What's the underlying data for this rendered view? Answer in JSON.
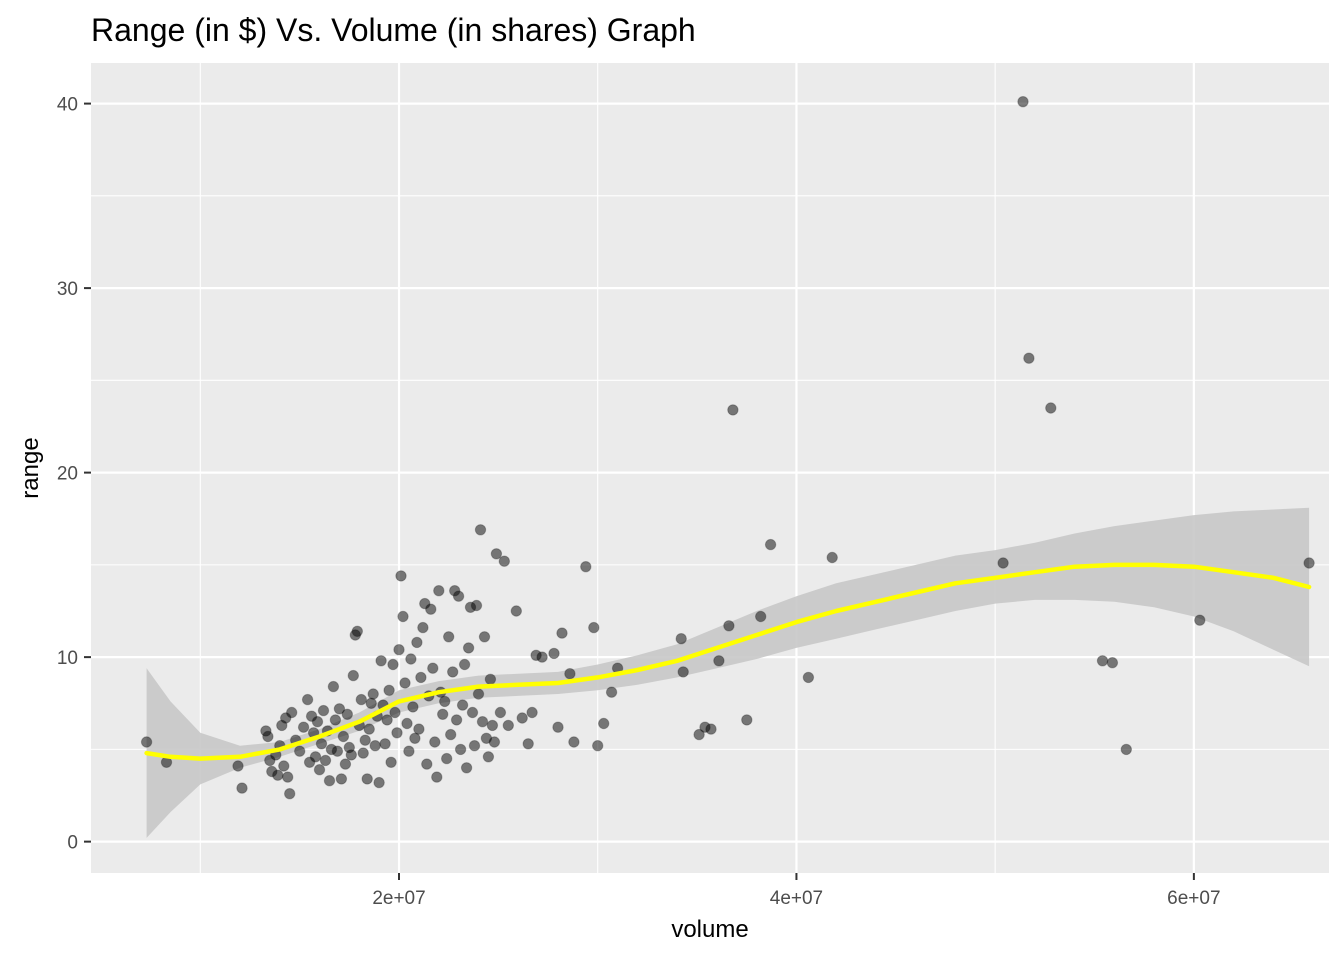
{
  "chart_data": {
    "type": "scatter",
    "title": "Range (in $) Vs. Volume (in shares) Graph",
    "xlabel": "volume",
    "ylabel": "range",
    "xlim": [
      4500000,
      66800000
    ],
    "ylim": [
      -1.7,
      42.2
    ],
    "x_ticks": [
      20000000,
      40000000,
      60000000
    ],
    "x_tick_labels": [
      "2e+07",
      "4e+07",
      "6e+07"
    ],
    "y_ticks": [
      0,
      10,
      20,
      30,
      40
    ],
    "y_tick_labels": [
      "0",
      "10",
      "20",
      "30",
      "40"
    ],
    "grid": true,
    "panel_background": "#ebebeb",
    "point_color": "#000000",
    "point_opacity": 0.5,
    "smooth_color": "#ffff00",
    "ribbon_color": "#c8c8c8",
    "points": [
      [
        7300000,
        5.4
      ],
      [
        8300000,
        4.3
      ],
      [
        11900000,
        4.1
      ],
      [
        12100000,
        2.9
      ],
      [
        13300000,
        6.0
      ],
      [
        13400000,
        5.7
      ],
      [
        13500000,
        4.4
      ],
      [
        13600000,
        3.8
      ],
      [
        13800000,
        4.7
      ],
      [
        13900000,
        3.6
      ],
      [
        14000000,
        5.2
      ],
      [
        14100000,
        6.3
      ],
      [
        14200000,
        4.1
      ],
      [
        14300000,
        6.7
      ],
      [
        14400000,
        3.5
      ],
      [
        14500000,
        2.6
      ],
      [
        14600000,
        7.0
      ],
      [
        14800000,
        5.5
      ],
      [
        15000000,
        4.9
      ],
      [
        15200000,
        6.2
      ],
      [
        15400000,
        7.7
      ],
      [
        15500000,
        4.3
      ],
      [
        15600000,
        6.8
      ],
      [
        15700000,
        5.9
      ],
      [
        15800000,
        4.6
      ],
      [
        15900000,
        6.5
      ],
      [
        16000000,
        3.9
      ],
      [
        16100000,
        5.3
      ],
      [
        16200000,
        7.1
      ],
      [
        16300000,
        4.4
      ],
      [
        16400000,
        6.0
      ],
      [
        16500000,
        3.3
      ],
      [
        16600000,
        5.0
      ],
      [
        16700000,
        8.4
      ],
      [
        16800000,
        6.6
      ],
      [
        16900000,
        4.9
      ],
      [
        17000000,
        7.2
      ],
      [
        17100000,
        3.4
      ],
      [
        17200000,
        5.7
      ],
      [
        17300000,
        4.2
      ],
      [
        17400000,
        6.9
      ],
      [
        17500000,
        5.1
      ],
      [
        17600000,
        4.7
      ],
      [
        17700000,
        9.0
      ],
      [
        17800000,
        11.2
      ],
      [
        17900000,
        11.4
      ],
      [
        18000000,
        6.3
      ],
      [
        18100000,
        7.7
      ],
      [
        18200000,
        4.8
      ],
      [
        18300000,
        5.5
      ],
      [
        18400000,
        3.4
      ],
      [
        18500000,
        6.1
      ],
      [
        18600000,
        7.5
      ],
      [
        18700000,
        8.0
      ],
      [
        18800000,
        5.2
      ],
      [
        18900000,
        6.8
      ],
      [
        19000000,
        3.2
      ],
      [
        19100000,
        9.8
      ],
      [
        19200000,
        7.4
      ],
      [
        19300000,
        5.3
      ],
      [
        19400000,
        6.6
      ],
      [
        19500000,
        8.2
      ],
      [
        19600000,
        4.3
      ],
      [
        19700000,
        9.6
      ],
      [
        19800000,
        7.0
      ],
      [
        19900000,
        5.9
      ],
      [
        20000000,
        10.4
      ],
      [
        20100000,
        14.4
      ],
      [
        20200000,
        12.2
      ],
      [
        20300000,
        8.6
      ],
      [
        20400000,
        6.4
      ],
      [
        20500000,
        4.9
      ],
      [
        20600000,
        9.9
      ],
      [
        20700000,
        7.3
      ],
      [
        20800000,
        5.6
      ],
      [
        20900000,
        10.8
      ],
      [
        21000000,
        6.1
      ],
      [
        21100000,
        8.9
      ],
      [
        21200000,
        11.6
      ],
      [
        21300000,
        12.9
      ],
      [
        21400000,
        4.2
      ],
      [
        21500000,
        7.9
      ],
      [
        21600000,
        12.6
      ],
      [
        21700000,
        9.4
      ],
      [
        21800000,
        5.4
      ],
      [
        21900000,
        3.5
      ],
      [
        22000000,
        13.6
      ],
      [
        22100000,
        8.1
      ],
      [
        22200000,
        6.9
      ],
      [
        22300000,
        7.6
      ],
      [
        22400000,
        4.5
      ],
      [
        22500000,
        11.1
      ],
      [
        22600000,
        5.8
      ],
      [
        22700000,
        9.2
      ],
      [
        22800000,
        13.6
      ],
      [
        22900000,
        6.6
      ],
      [
        23000000,
        13.3
      ],
      [
        23100000,
        5.0
      ],
      [
        23200000,
        7.4
      ],
      [
        23300000,
        9.6
      ],
      [
        23400000,
        4.0
      ],
      [
        23500000,
        10.5
      ],
      [
        23600000,
        12.7
      ],
      [
        23700000,
        7.0
      ],
      [
        23800000,
        5.2
      ],
      [
        23900000,
        12.8
      ],
      [
        24000000,
        8.0
      ],
      [
        24100000,
        16.9
      ],
      [
        24200000,
        6.5
      ],
      [
        24300000,
        11.1
      ],
      [
        24400000,
        5.6
      ],
      [
        24500000,
        4.6
      ],
      [
        24600000,
        8.8
      ],
      [
        24700000,
        6.3
      ],
      [
        24800000,
        5.4
      ],
      [
        24900000,
        15.6
      ],
      [
        25100000,
        7.0
      ],
      [
        25300000,
        15.2
      ],
      [
        25500000,
        6.3
      ],
      [
        25900000,
        12.5
      ],
      [
        26200000,
        6.7
      ],
      [
        26500000,
        5.3
      ],
      [
        26700000,
        7.0
      ],
      [
        26900000,
        10.1
      ],
      [
        27200000,
        10.0
      ],
      [
        27800000,
        10.2
      ],
      [
        28000000,
        6.2
      ],
      [
        28200000,
        11.3
      ],
      [
        28600000,
        9.1
      ],
      [
        28800000,
        5.4
      ],
      [
        29400000,
        14.9
      ],
      [
        29800000,
        11.6
      ],
      [
        30000000,
        5.2
      ],
      [
        30300000,
        6.4
      ],
      [
        30700000,
        8.1
      ],
      [
        31000000,
        9.4
      ],
      [
        34200000,
        11.0
      ],
      [
        34300000,
        9.2
      ],
      [
        35100000,
        5.8
      ],
      [
        35400000,
        6.2
      ],
      [
        35700000,
        6.1
      ],
      [
        36100000,
        9.8
      ],
      [
        36600000,
        11.7
      ],
      [
        36800000,
        23.4
      ],
      [
        37500000,
        6.6
      ],
      [
        38200000,
        12.2
      ],
      [
        38700000,
        16.1
      ],
      [
        40600000,
        8.9
      ],
      [
        41800000,
        15.4
      ],
      [
        50400000,
        15.1
      ],
      [
        51400000,
        40.1
      ],
      [
        51700000,
        26.2
      ],
      [
        52800000,
        23.5
      ],
      [
        55400000,
        9.8
      ],
      [
        55900000,
        9.7
      ],
      [
        56600000,
        5.0
      ],
      [
        60300000,
        12.0
      ],
      [
        65800000,
        15.1
      ]
    ],
    "smooth": {
      "x": [
        7300000,
        8500000,
        10000000,
        12000000,
        14000000,
        16000000,
        18000000,
        20000000,
        22000000,
        24000000,
        26000000,
        28000000,
        30000000,
        32000000,
        34000000,
        36000000,
        38000000,
        40000000,
        42000000,
        44000000,
        46000000,
        48000000,
        50000000,
        52000000,
        54000000,
        56000000,
        58000000,
        60000000,
        62000000,
        64000000,
        65800000
      ],
      "fit": [
        4.8,
        4.6,
        4.5,
        4.6,
        5.0,
        5.7,
        6.5,
        7.6,
        8.1,
        8.4,
        8.5,
        8.6,
        8.9,
        9.3,
        9.8,
        10.5,
        11.2,
        11.9,
        12.5,
        13.0,
        13.5,
        14.0,
        14.3,
        14.6,
        14.9,
        15.0,
        15.0,
        14.9,
        14.6,
        14.3,
        13.8
      ],
      "lower": [
        0.2,
        1.6,
        3.1,
        4.0,
        4.6,
        5.3,
        6.0,
        7.0,
        7.5,
        7.8,
        7.9,
        8.0,
        8.2,
        8.5,
        8.9,
        9.4,
        9.9,
        10.5,
        11.0,
        11.5,
        12.0,
        12.5,
        12.9,
        13.1,
        13.1,
        13.0,
        12.7,
        12.2,
        11.4,
        10.4,
        9.5
      ],
      "upper": [
        9.4,
        7.6,
        5.9,
        5.2,
        5.4,
        6.1,
        7.0,
        8.2,
        8.7,
        9.0,
        9.1,
        9.2,
        9.6,
        10.1,
        10.7,
        11.6,
        12.5,
        13.3,
        14.0,
        14.5,
        15.0,
        15.5,
        15.8,
        16.2,
        16.7,
        17.1,
        17.4,
        17.7,
        17.9,
        18.0,
        18.1
      ]
    }
  }
}
